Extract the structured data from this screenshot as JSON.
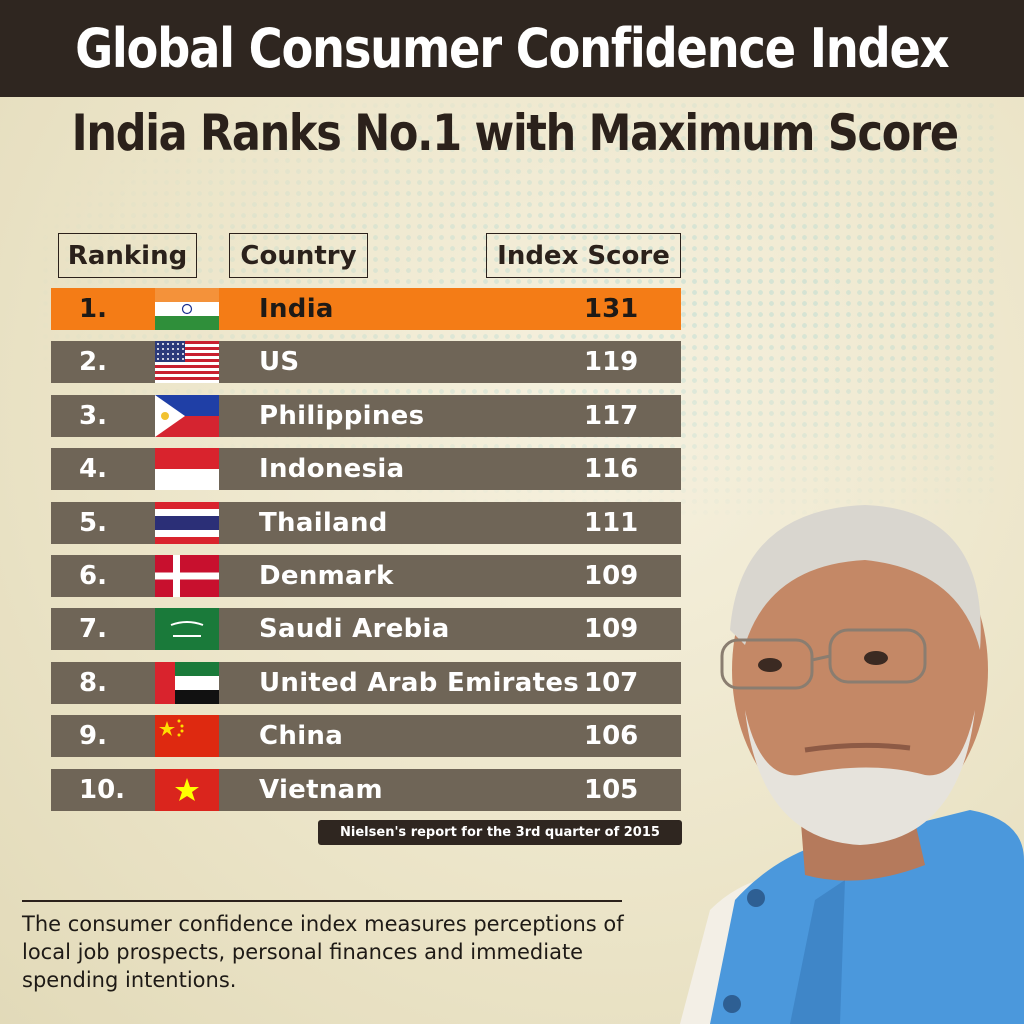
{
  "title": "Global Consumer Confidence Index",
  "subtitle": "India Ranks No.1 with Maximum Score",
  "headers": {
    "ranking": "Ranking",
    "country": "Country",
    "score": "Index Score"
  },
  "chart_data": {
    "type": "table",
    "columns": [
      "Ranking",
      "Country",
      "Index Score"
    ],
    "rows": [
      {
        "rank": "1.",
        "country": "India",
        "score": 131,
        "flag": "india-flag-icon"
      },
      {
        "rank": "2.",
        "country": "US",
        "score": 119,
        "flag": "us-flag-icon"
      },
      {
        "rank": "3.",
        "country": "Philippines",
        "score": 117,
        "flag": "philippines-flag-icon"
      },
      {
        "rank": "4.",
        "country": "Indonesia",
        "score": 116,
        "flag": "indonesia-flag-icon"
      },
      {
        "rank": "5.",
        "country": "Thailand",
        "score": 111,
        "flag": "thailand-flag-icon"
      },
      {
        "rank": "6.",
        "country": "Denmark",
        "score": 109,
        "flag": "denmark-flag-icon"
      },
      {
        "rank": "7.",
        "country": "Saudi Arebia",
        "score": 109,
        "flag": "saudi-arabia-flag-icon"
      },
      {
        "rank": "8.",
        "country": "United Arab Emirates",
        "score": 107,
        "flag": "uae-flag-icon"
      },
      {
        "rank": "9.",
        "country": "China",
        "score": 106,
        "flag": "china-flag-icon"
      },
      {
        "rank": "10.",
        "country": "Vietnam",
        "score": 105,
        "flag": "vietnam-flag-icon"
      }
    ],
    "highlight_color": "#f47c16",
    "row_color": "#6f6557"
  },
  "source_note": "Nielsen's report for the 3rd quarter of 2015",
  "footnote": "The consumer confidence index measures perceptions of local job prospects, personal finances and immediate spending intentions.",
  "colors": {
    "title_bar": "#2f2620",
    "background": "#ece5c9",
    "vest": "#4b98dc"
  }
}
